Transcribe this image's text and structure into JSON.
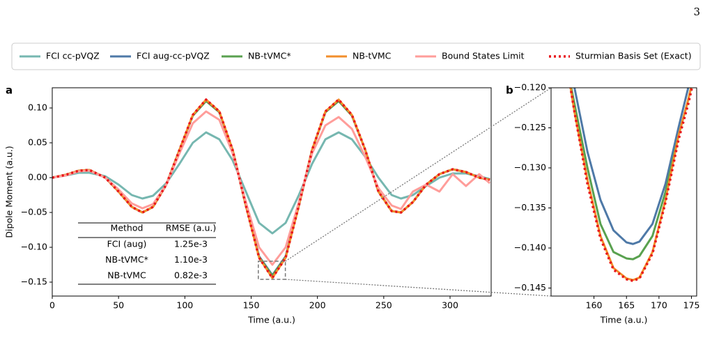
{
  "page_number": "3",
  "chart_data": [
    {
      "type": "line",
      "panel_label": "a",
      "xlabel": "Time (a.u.)",
      "ylabel": "Dipole Moment (a.u.)",
      "x": [
        0,
        10,
        20,
        28,
        40,
        50,
        60,
        68,
        76,
        86,
        96,
        106,
        116,
        126,
        136,
        146,
        156,
        166,
        176,
        186,
        196,
        206,
        216,
        226,
        236,
        246,
        256,
        263,
        272,
        282,
        292,
        302,
        312,
        322,
        330
      ],
      "xlim": [
        0,
        331
      ],
      "xticks": [
        0,
        50,
        100,
        150,
        200,
        250,
        300
      ],
      "ylim": [
        -0.17,
        0.129
      ],
      "yticks": [
        {
          "value": 0.1,
          "label": "0.10"
        },
        {
          "value": 0.05,
          "label": "0.05"
        },
        {
          "value": 0,
          "label": "0.00"
        },
        {
          "value": -0.05,
          "label": "−0.05"
        },
        {
          "value": -0.1,
          "label": "−0.10"
        },
        {
          "value": -0.15,
          "label": "−0.15"
        }
      ],
      "series": [
        {
          "name": "FCI cc-pVQZ",
          "color": "#76b7b0",
          "values": [
            0,
            0.003,
            0.007,
            0.007,
            0.002,
            -0.01,
            -0.025,
            -0.03,
            -0.026,
            -0.008,
            0.02,
            0.05,
            0.065,
            0.055,
            0.025,
            -0.02,
            -0.065,
            -0.08,
            -0.065,
            -0.025,
            0.02,
            0.055,
            0.065,
            0.055,
            0.03,
            0,
            -0.025,
            -0.03,
            -0.025,
            -0.012,
            0,
            0.006,
            0.006,
            0.002,
            -0.002
          ]
        },
        {
          "name": "FCI aug-cc-pVQZ",
          "color": "#4e79a7",
          "values": [
            0,
            0.004,
            0.01,
            0.011,
            0,
            -0.02,
            -0.042,
            -0.05,
            -0.042,
            -0.01,
            0.04,
            0.089,
            0.11,
            0.094,
            0.04,
            -0.04,
            -0.113,
            -0.14,
            -0.113,
            -0.04,
            0.04,
            0.094,
            0.11,
            0.089,
            0.04,
            -0.02,
            -0.048,
            -0.05,
            -0.035,
            -0.01,
            0.005,
            0.012,
            0.008,
            0,
            -0.003
          ]
        },
        {
          "name": "NB-tVMC*",
          "color": "#59a14f",
          "values": [
            0,
            0.004,
            0.01,
            0.011,
            0,
            -0.02,
            -0.042,
            -0.05,
            -0.042,
            -0.01,
            0.04,
            0.089,
            0.11,
            0.094,
            0.04,
            -0.04,
            -0.114,
            -0.141,
            -0.114,
            -0.04,
            0.04,
            0.094,
            0.11,
            0.089,
            0.04,
            -0.02,
            -0.048,
            -0.05,
            -0.035,
            -0.01,
            0.005,
            0.012,
            0.008,
            0,
            -0.003
          ]
        },
        {
          "name": "NB-tVMC",
          "color": "#f28e2b",
          "values": [
            0,
            0.004,
            0.01,
            0.011,
            0,
            -0.02,
            -0.042,
            -0.05,
            -0.042,
            -0.01,
            0.04,
            0.09,
            0.112,
            0.095,
            0.04,
            -0.04,
            -0.115,
            -0.144,
            -0.115,
            -0.04,
            0.04,
            0.095,
            0.112,
            0.09,
            0.04,
            -0.02,
            -0.048,
            -0.05,
            -0.035,
            -0.01,
            0.005,
            0.012,
            0.008,
            0,
            -0.003
          ]
        },
        {
          "name": "Bound States Limit",
          "color": "#ff9d9a",
          "values": [
            0,
            0.003,
            0.009,
            0.01,
            0,
            -0.017,
            -0.037,
            -0.044,
            -0.038,
            -0.01,
            0.035,
            0.078,
            0.095,
            0.083,
            0.035,
            -0.035,
            -0.1,
            -0.125,
            -0.1,
            -0.035,
            0.035,
            0.075,
            0.087,
            0.07,
            0.03,
            -0.015,
            -0.04,
            -0.045,
            -0.02,
            -0.01,
            -0.02,
            0.005,
            -0.012,
            0.005,
            -0.008
          ]
        },
        {
          "name": "Sturmian Basis Set (Exact)",
          "color": "#e8161b",
          "linestyle": "dotted",
          "values": [
            0,
            0.004,
            0.01,
            0.011,
            0,
            -0.02,
            -0.042,
            -0.05,
            -0.042,
            -0.01,
            0.04,
            0.09,
            0.112,
            0.095,
            0.04,
            -0.04,
            -0.115,
            -0.144,
            -0.115,
            -0.04,
            0.04,
            0.095,
            0.112,
            0.09,
            0.04,
            -0.02,
            -0.048,
            -0.05,
            -0.035,
            -0.01,
            0.005,
            0.012,
            0.008,
            0,
            -0.003
          ]
        }
      ],
      "table": {
        "header": [
          "Method",
          "RMSE (a.u.)"
        ],
        "rows": [
          [
            "FCI (aug)",
            "1.25e-3"
          ],
          [
            "NB-tVMC*",
            "1.10e-3"
          ],
          [
            "NB-tVMC",
            "0.82e-3"
          ]
        ]
      }
    },
    {
      "type": "line",
      "panel_label": "b",
      "xlabel": "Time (a.u.)",
      "x": [
        156,
        157,
        159,
        161,
        163,
        165,
        166,
        167,
        169,
        171,
        173,
        174.5,
        175.5
      ],
      "xlim": [
        153.4,
        175.8
      ],
      "xticks": [
        160,
        165,
        170,
        175
      ],
      "ylim": [
        -0.146,
        -0.12
      ],
      "yticks": [
        {
          "value": -0.12,
          "label": "−0.120"
        },
        {
          "value": -0.125,
          "label": "−0.125"
        },
        {
          "value": -0.13,
          "label": "−0.130"
        },
        {
          "value": -0.135,
          "label": "−0.135"
        },
        {
          "value": -0.14,
          "label": "−0.140"
        },
        {
          "value": -0.145,
          "label": "−0.145"
        }
      ],
      "series": [
        {
          "color": "#4e79a7",
          "values": [
            -0.117,
            -0.12,
            -0.128,
            -0.134,
            -0.1378,
            -0.1393,
            -0.1395,
            -0.1392,
            -0.137,
            -0.132,
            -0.125,
            -0.12,
            -0.116
          ]
        },
        {
          "color": "#59a14f",
          "values": [
            -0.118,
            -0.122,
            -0.13,
            -0.137,
            -0.1405,
            -0.1413,
            -0.1414,
            -0.141,
            -0.1385,
            -0.133,
            -0.126,
            -0.1215,
            -0.118
          ]
        },
        {
          "color": "#f28e2b",
          "values": [
            -0.118,
            -0.123,
            -0.1315,
            -0.1385,
            -0.1425,
            -0.1438,
            -0.144,
            -0.1437,
            -0.1405,
            -0.134,
            -0.126,
            -0.1215,
            -0.118
          ]
        },
        {
          "color": "#e8161b",
          "linestyle": "dotted",
          "values": [
            -0.118,
            -0.123,
            -0.132,
            -0.1388,
            -0.1427,
            -0.1439,
            -0.1441,
            -0.1438,
            -0.1407,
            -0.1343,
            -0.1265,
            -0.122,
            -0.1185
          ]
        }
      ]
    }
  ]
}
